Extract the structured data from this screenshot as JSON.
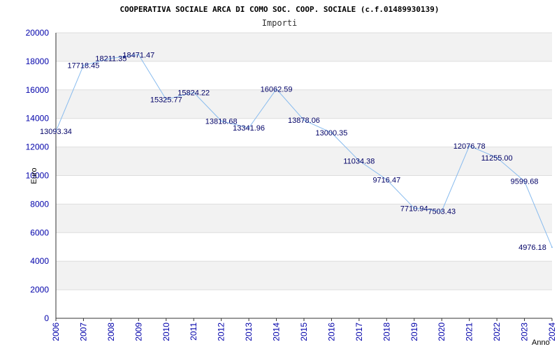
{
  "chart_data": {
    "type": "line",
    "title": "COOPERATIVA SOCIALE ARCA DI COMO SOC. COOP. SOCIALE (c.f.01489930139)",
    "subtitle": "Importi",
    "xlabel": "Anno",
    "ylabel": "Euro",
    "ylim": [
      0,
      20000
    ],
    "yticks": [
      "0",
      "2000",
      "4000",
      "6000",
      "8000",
      "10000",
      "12000",
      "14000",
      "16000",
      "18000",
      "20000"
    ],
    "categories": [
      "2006",
      "2007",
      "2008",
      "2009",
      "2010",
      "2011",
      "2012",
      "2013",
      "2014",
      "2015",
      "2016",
      "2017",
      "2018",
      "2019",
      "2020",
      "2021",
      "2022",
      "2023",
      "2024"
    ],
    "values": [
      13093.34,
      17718.45,
      18211.35,
      18471.47,
      15325.77,
      15824.22,
      13818.68,
      13341.96,
      16062.59,
      13878.06,
      13000.35,
      11034.38,
      9716.47,
      7710.94,
      7503.43,
      12076.78,
      11255.0,
      9599.68,
      4976.18
    ],
    "labels": [
      "13093.34",
      "17718.45",
      "18211.35",
      "18471.47",
      "15325.77",
      "15824.22",
      "13818.68",
      "13341.96",
      "16062.59",
      "13878.06",
      "13000.35",
      "11034.38",
      "9716.47",
      "7710.94",
      "7503.43",
      "12076.78",
      "11255.00",
      "9599.68",
      "4976.18"
    ],
    "grid": true,
    "colors": {
      "line": "#88bbee",
      "band": "#f2f2f2",
      "gridline": "#dddddd",
      "axis": "#333333",
      "tick_text": "#0000aa",
      "label_text": "#000066"
    }
  }
}
